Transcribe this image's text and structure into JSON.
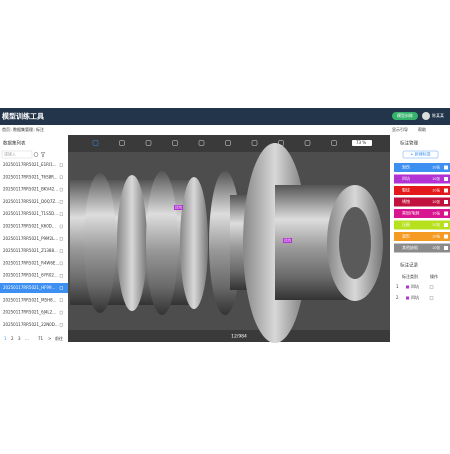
{
  "header": {
    "title": "模型训练工具",
    "button": "模型训练",
    "user": "陈某某"
  },
  "breadcrumb": {
    "items": [
      "首页",
      "数据集管理",
      "标注"
    ],
    "right": [
      "显示引导",
      "帮助"
    ]
  },
  "left_panel": {
    "title": "数据集列表",
    "search": "请输入",
    "items": [
      "20250117RR5021_E1RI1...",
      "20250117RR5021_T6S8R...",
      "20250117RR5021_BKV42...",
      "20250117RR5021_D0Q7Z...",
      "20250117RR5021_T1S5D...",
      "20250117RR5021_K60D...",
      "20250117RR5021_P9M2L...",
      "20250117RR5021_Z1388...",
      "20250117RR5021_R4W6E...",
      "20250117RR5021_6YR02...",
      "20250117RR5021_HF99...",
      "20250117RR5021_M5H8...",
      "20250117RR5021_6J4L2...",
      "20250117RR5021_22N0D..."
    ],
    "selected": 10,
    "pagination": [
      "1",
      "2",
      "3",
      "...",
      "71",
      ">",
      "前往"
    ]
  },
  "toolbar": {
    "zoom": "73 %"
  },
  "canvas": {
    "counter": "12/984",
    "annotations": [
      "凹坑",
      "凹坑"
    ]
  },
  "right_panel": {
    "title": "标注管理",
    "new_button": "+ 新建标签",
    "labels": [
      {
        "name": "划伤",
        "count": "10张",
        "color": "#3d8ff2"
      },
      {
        "name": "凹坑",
        "count": "10张",
        "color": "#b232d4"
      },
      {
        "name": "裂纹",
        "count": "10张",
        "color": "#e4191b"
      },
      {
        "name": "锈蚀",
        "count": "10张",
        "color": "#c1123e"
      },
      {
        "name": "黑斑/毛刺",
        "count": "10张",
        "color": "#d8168f"
      },
      {
        "name": "压痕",
        "count": "10张",
        "color": "#b7e01d"
      },
      {
        "name": "变形",
        "count": "10张",
        "color": "#f59a23"
      },
      {
        "name": "其他缺陷",
        "count": "10张",
        "color": "#8b8b8b"
      }
    ],
    "records": {
      "title": "标注记录",
      "columns": [
        "标注类别",
        "操作"
      ],
      "rows": [
        {
          "index": "1",
          "label": "凹坑"
        },
        {
          "index": "2",
          "label": "凹坑"
        }
      ]
    }
  }
}
